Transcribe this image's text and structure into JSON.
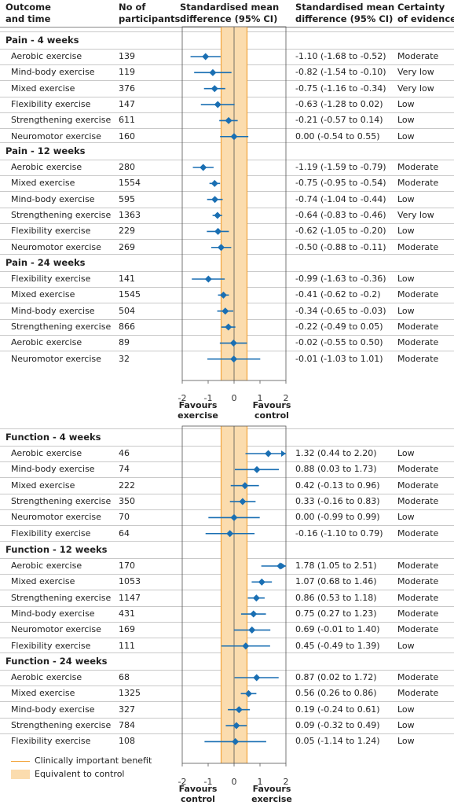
{
  "headers": {
    "outcome": [
      "Outcome",
      "and time"
    ],
    "participants": [
      "No of",
      "participants"
    ],
    "smd_plot": [
      "Standardised mean",
      "difference (95% CI)"
    ],
    "smd_text": [
      "Standardised mean",
      "difference (95% CI)"
    ],
    "certainty": [
      "Certainty",
      "of evidence"
    ]
  },
  "colors": {
    "marker": "#1a6fb3",
    "band": "#fbdcae",
    "threshold": "#f2a33a"
  },
  "chart_data": [
    {
      "type": "forest",
      "title": "Pain",
      "xlim": [
        -2,
        2
      ],
      "ticks": [
        "-2",
        "-1",
        "0",
        "1",
        "2"
      ],
      "band": [
        -0.5,
        0.5
      ],
      "favours_left": [
        "Favours",
        "exercise"
      ],
      "favours_right": [
        "Favours",
        "control"
      ],
      "groups": [
        {
          "label": "Pain - 4 weeks",
          "rows": [
            {
              "name": "Aerobic exercise",
              "n": "139",
              "est": -1.1,
              "lo": -1.68,
              "hi": -0.52,
              "ci": "-1.10 (-1.68 to -0.52)",
              "cert": "Moderate"
            },
            {
              "name": "Mind-body exercise",
              "n": "119",
              "est": -0.82,
              "lo": -1.54,
              "hi": -0.1,
              "ci": "-0.82 (-1.54 to -0.10)",
              "cert": "Very low"
            },
            {
              "name": "Mixed exercise",
              "n": "376",
              "est": -0.75,
              "lo": -1.16,
              "hi": -0.34,
              "ci": "-0.75 (-1.16 to -0.34)",
              "cert": "Very low"
            },
            {
              "name": "Flexibility exercise",
              "n": "147",
              "est": -0.63,
              "lo": -1.28,
              "hi": 0.02,
              "ci": "-0.63 (-1.28 to 0.02)",
              "cert": "Low"
            },
            {
              "name": "Strengthening exercise",
              "n": "611",
              "est": -0.21,
              "lo": -0.57,
              "hi": 0.14,
              "ci": "-0.21 (-0.57 to 0.14)",
              "cert": "Low"
            },
            {
              "name": "Neuromotor exercise",
              "n": "160",
              "est": 0.0,
              "lo": -0.54,
              "hi": 0.55,
              "ci": "0.00 (-0.54 to 0.55)",
              "cert": "Low"
            }
          ]
        },
        {
          "label": "Pain - 12 weeks",
          "rows": [
            {
              "name": "Aerobic exercise",
              "n": "280",
              "est": -1.19,
              "lo": -1.59,
              "hi": -0.79,
              "ci": "-1.19 (-1.59 to -0.79)",
              "cert": "Moderate"
            },
            {
              "name": "Mixed exercise",
              "n": "1554",
              "est": -0.75,
              "lo": -0.95,
              "hi": -0.54,
              "ci": "-0.75 (-0.95 to -0.54)",
              "cert": "Moderate"
            },
            {
              "name": "Mind-body exercise",
              "n": "595",
              "est": -0.74,
              "lo": -1.04,
              "hi": -0.44,
              "ci": "-0.74 (-1.04 to -0.44)",
              "cert": "Low"
            },
            {
              "name": "Strengthening exercise",
              "n": "1363",
              "est": -0.64,
              "lo": -0.83,
              "hi": -0.46,
              "ci": "-0.64 (-0.83 to -0.46)",
              "cert": "Very low"
            },
            {
              "name": "Flexibility exercise",
              "n": "229",
              "est": -0.62,
              "lo": -1.05,
              "hi": -0.2,
              "ci": "-0.62 (-1.05 to -0.20)",
              "cert": "Low"
            },
            {
              "name": "Neuromotor exercise",
              "n": "269",
              "est": -0.5,
              "lo": -0.88,
              "hi": -0.11,
              "ci": "-0.50 (-0.88 to -0.11)",
              "cert": "Moderate"
            }
          ]
        },
        {
          "label": "Pain - 24 weeks",
          "rows": [
            {
              "name": "Flexibility exercise",
              "n": "141",
              "est": -0.99,
              "lo": -1.63,
              "hi": -0.36,
              "ci": "-0.99 (-1.63 to -0.36)",
              "cert": "Low"
            },
            {
              "name": "Mixed exercise",
              "n": "1545",
              "est": -0.41,
              "lo": -0.62,
              "hi": -0.2,
              "ci": "-0.41 (-0.62 to -0.2)",
              "cert": "Moderate"
            },
            {
              "name": "Mind-body exercise",
              "n": "504",
              "est": -0.34,
              "lo": -0.65,
              "hi": -0.03,
              "ci": "-0.34 (-0.65 to -0.03)",
              "cert": "Low"
            },
            {
              "name": "Strengthening exercise",
              "n": "866",
              "est": -0.22,
              "lo": -0.49,
              "hi": 0.05,
              "ci": "-0.22 (-0.49 to 0.05)",
              "cert": "Moderate"
            },
            {
              "name": "Aerobic exercise",
              "n": "89",
              "est": -0.02,
              "lo": -0.55,
              "hi": 0.5,
              "ci": "-0.02 (-0.55 to 0.50)",
              "cert": "Moderate"
            },
            {
              "name": "Neuromotor exercise",
              "n": "32",
              "est": -0.01,
              "lo": -1.03,
              "hi": 1.01,
              "ci": "-0.01 (-1.03 to 1.01)",
              "cert": "Moderate"
            }
          ]
        }
      ]
    },
    {
      "type": "forest",
      "title": "Function",
      "xlim": [
        -2,
        2
      ],
      "ticks": [
        "-2",
        "-1",
        "0",
        "1",
        "2"
      ],
      "band": [
        -0.5,
        0.5
      ],
      "favours_left": [
        "Favours",
        "control"
      ],
      "favours_right": [
        "Favours",
        "exercise"
      ],
      "groups": [
        {
          "label": "Function - 4 weeks",
          "rows": [
            {
              "name": "Aerobic exercise",
              "n": "46",
              "est": 1.32,
              "lo": 0.44,
              "hi": 2.2,
              "ci": "1.32 (0.44 to 2.20)",
              "cert": "Low"
            },
            {
              "name": "Mind-body exercise",
              "n": "74",
              "est": 0.88,
              "lo": 0.03,
              "hi": 1.73,
              "ci": "0.88 (0.03 to 1.73)",
              "cert": "Moderate"
            },
            {
              "name": "Mixed exercise",
              "n": "222",
              "est": 0.42,
              "lo": -0.13,
              "hi": 0.96,
              "ci": "0.42 (-0.13 to 0.96)",
              "cert": "Moderate"
            },
            {
              "name": "Strengthening exercise",
              "n": "350",
              "est": 0.33,
              "lo": -0.16,
              "hi": 0.83,
              "ci": "0.33 (-0.16 to 0.83)",
              "cert": "Moderate"
            },
            {
              "name": "Neuromotor exercise",
              "n": "70",
              "est": 0.0,
              "lo": -0.99,
              "hi": 0.99,
              "ci": "0.00 (-0.99 to 0.99)",
              "cert": "Low"
            },
            {
              "name": "Flexibility exercise",
              "n": "64",
              "est": -0.16,
              "lo": -1.1,
              "hi": 0.79,
              "ci": "-0.16 (-1.10 to 0.79)",
              "cert": "Moderate"
            }
          ]
        },
        {
          "label": "Function - 12 weeks",
          "rows": [
            {
              "name": "Aerobic exercise",
              "n": "170",
              "est": 1.78,
              "lo": 1.05,
              "hi": 2.51,
              "ci": "1.78 (1.05 to 2.51)",
              "cert": "Moderate"
            },
            {
              "name": "Mixed exercise",
              "n": "1053",
              "est": 1.07,
              "lo": 0.68,
              "hi": 1.46,
              "ci": "1.07 (0.68 to 1.46)",
              "cert": "Moderate"
            },
            {
              "name": "Strengthening exercise",
              "n": "1147",
              "est": 0.86,
              "lo": 0.53,
              "hi": 1.18,
              "ci": "0.86 (0.53 to 1.18)",
              "cert": "Moderate"
            },
            {
              "name": "Mind-body exercise",
              "n": "431",
              "est": 0.75,
              "lo": 0.27,
              "hi": 1.23,
              "ci": "0.75 (0.27 to 1.23)",
              "cert": "Moderate"
            },
            {
              "name": "Neuromotor exercise",
              "n": "169",
              "est": 0.69,
              "lo": -0.01,
              "hi": 1.4,
              "ci": "0.69 (-0.01 to 1.40)",
              "cert": "Moderate"
            },
            {
              "name": "Flexibility exercise",
              "n": "111",
              "est": 0.45,
              "lo": -0.49,
              "hi": 1.39,
              "ci": "0.45 (-0.49 to 1.39)",
              "cert": "Low"
            }
          ]
        },
        {
          "label": "Function - 24 weeks",
          "rows": [
            {
              "name": "Aerobic exercise",
              "n": "68",
              "est": 0.87,
              "lo": 0.02,
              "hi": 1.72,
              "ci": "0.87 (0.02 to 1.72)",
              "cert": "Moderate"
            },
            {
              "name": "Mixed exercise",
              "n": "1325",
              "est": 0.56,
              "lo": 0.26,
              "hi": 0.86,
              "ci": "0.56 (0.26 to 0.86)",
              "cert": "Moderate"
            },
            {
              "name": "Mind-body exercise",
              "n": "327",
              "est": 0.19,
              "lo": -0.24,
              "hi": 0.61,
              "ci": "0.19 (-0.24 to 0.61)",
              "cert": "Low"
            },
            {
              "name": "Strengthening exercise",
              "n": "784",
              "est": 0.09,
              "lo": -0.32,
              "hi": 0.49,
              "ci": "0.09 (-0.32 to 0.49)",
              "cert": "Low"
            },
            {
              "name": "Flexibility exercise",
              "n": "108",
              "est": 0.05,
              "lo": -1.14,
              "hi": 1.24,
              "ci": "0.05 (-1.14 to 1.24)",
              "cert": "Low"
            }
          ]
        }
      ]
    }
  ],
  "legend": {
    "threshold_label": "Clinically important benefit",
    "band_label": "Equivalent to control"
  }
}
